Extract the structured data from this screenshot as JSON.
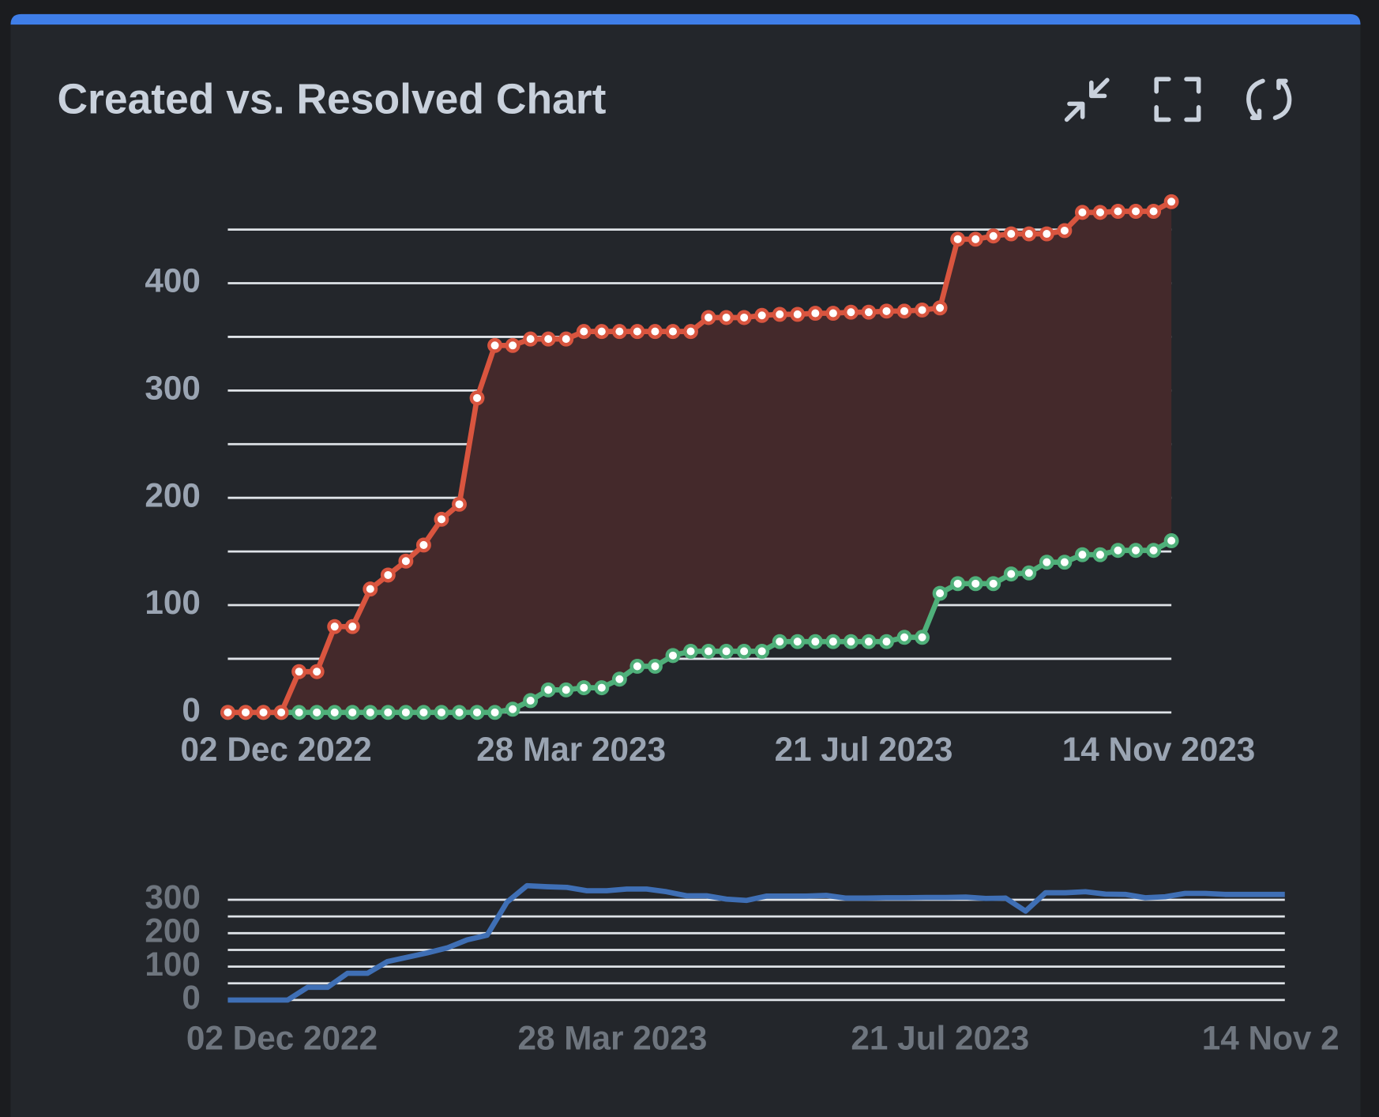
{
  "chart_data": [
    {
      "type": "line",
      "title": "Created vs. Resolved Chart",
      "x": [
        "2022-11-13",
        "2022-11-20",
        "2022-11-27",
        "2022-12-04",
        "2022-12-11",
        "2022-12-18",
        "2022-12-25",
        "2023-01-01",
        "2023-01-08",
        "2023-01-15",
        "2023-01-22",
        "2023-01-29",
        "2023-02-05",
        "2023-02-12",
        "2023-02-19",
        "2023-02-26",
        "2023-03-05",
        "2023-03-12",
        "2023-03-19",
        "2023-03-26",
        "2023-04-02",
        "2023-04-09",
        "2023-04-16",
        "2023-04-23",
        "2023-04-30",
        "2023-05-07",
        "2023-05-14",
        "2023-05-21",
        "2023-05-28",
        "2023-06-04",
        "2023-06-11",
        "2023-06-18",
        "2023-06-25",
        "2023-07-02",
        "2023-07-09",
        "2023-07-16",
        "2023-07-23",
        "2023-07-30",
        "2023-08-06",
        "2023-08-13",
        "2023-08-20",
        "2023-08-27",
        "2023-09-03",
        "2023-09-10",
        "2023-09-17",
        "2023-09-24",
        "2023-10-01",
        "2023-10-08",
        "2023-10-15",
        "2023-10-22",
        "2023-10-29",
        "2023-11-05",
        "2023-11-12",
        "2023-11-19"
      ],
      "xlim": [
        "2022-11-13",
        "2023-11-19"
      ],
      "xticks": [
        {
          "value": "2022-12-02",
          "label": "02 Dec 2022"
        },
        {
          "value": "2023-03-28",
          "label": "28 Mar 2023"
        },
        {
          "value": "2023-07-21",
          "label": "21 Jul 2023"
        },
        {
          "value": "2023-11-14",
          "label": "14 Nov 2023"
        }
      ],
      "ylim": [
        0,
        480
      ],
      "yticks": [
        0,
        100,
        200,
        300,
        400
      ],
      "minor_yticks": [
        50,
        150,
        250,
        350,
        450
      ],
      "grid": true,
      "fill_between": "#44292b",
      "series": [
        {
          "color": "#d9553f",
          "values": [
            0,
            0,
            0,
            0,
            38,
            38,
            80,
            80,
            115,
            128,
            141,
            156,
            180,
            194,
            293,
            342,
            342,
            348,
            348,
            348,
            355,
            355,
            355,
            355,
            355,
            355,
            355,
            368,
            368,
            368,
            370,
            371,
            371,
            372,
            372,
            373,
            373,
            374,
            374,
            375,
            377,
            441,
            441,
            444,
            446,
            446,
            446,
            449,
            466,
            466,
            467,
            467,
            467,
            476
          ]
        },
        {
          "color": "#4fb07a",
          "values": [
            0,
            0,
            0,
            0,
            0,
            0,
            0,
            0,
            0,
            0,
            0,
            0,
            0,
            0,
            0,
            0,
            3,
            11,
            21,
            21,
            23,
            23,
            31,
            43,
            43,
            53,
            57,
            57,
            57,
            57,
            57,
            66,
            66,
            66,
            66,
            66,
            66,
            66,
            70,
            70,
            111,
            120,
            120,
            120,
            129,
            130,
            140,
            140,
            147,
            147,
            151,
            151,
            151,
            160
          ]
        }
      ]
    },
    {
      "type": "line",
      "x": [
        "2022-11-13",
        "2022-11-20",
        "2022-11-27",
        "2022-12-04",
        "2022-12-11",
        "2022-12-18",
        "2022-12-25",
        "2023-01-01",
        "2023-01-08",
        "2023-01-15",
        "2023-01-22",
        "2023-01-29",
        "2023-02-05",
        "2023-02-12",
        "2023-02-19",
        "2023-02-26",
        "2023-03-05",
        "2023-03-12",
        "2023-03-19",
        "2023-03-26",
        "2023-04-02",
        "2023-04-09",
        "2023-04-16",
        "2023-04-23",
        "2023-04-30",
        "2023-05-07",
        "2023-05-14",
        "2023-05-21",
        "2023-05-28",
        "2023-06-04",
        "2023-06-11",
        "2023-06-18",
        "2023-06-25",
        "2023-07-02",
        "2023-07-09",
        "2023-07-16",
        "2023-07-23",
        "2023-07-30",
        "2023-08-06",
        "2023-08-13",
        "2023-08-20",
        "2023-08-27",
        "2023-09-03",
        "2023-09-10",
        "2023-09-17",
        "2023-09-24",
        "2023-10-01",
        "2023-10-08",
        "2023-10-15",
        "2023-10-22",
        "2023-10-29",
        "2023-11-05",
        "2023-11-12",
        "2023-11-19"
      ],
      "xlim": [
        "2022-11-13",
        "2023-11-19"
      ],
      "xticks": [
        {
          "value": "2022-12-02",
          "label": "02 Dec 2022"
        },
        {
          "value": "2023-03-28",
          "label": "28 Mar 2023"
        },
        {
          "value": "2023-07-21",
          "label": "21 Jul 2023"
        },
        {
          "value": "2023-11-14",
          "label": "14 Nov 2"
        }
      ],
      "ylim": [
        0,
        350
      ],
      "yticks": [
        0,
        100,
        200,
        300
      ],
      "minor_yticks": [
        50,
        150,
        250
      ],
      "grid": true,
      "series": [
        {
          "color": "#3f6fb5",
          "values": [
            0,
            0,
            0,
            0,
            38,
            38,
            80,
            80,
            115,
            128,
            141,
            156,
            180,
            194,
            293,
            342,
            339,
            337,
            327,
            327,
            332,
            332,
            324,
            312,
            312,
            302,
            298,
            311,
            311,
            311,
            313,
            305,
            305,
            306,
            306,
            307,
            307,
            308,
            304,
            305,
            266,
            321,
            321,
            324,
            317,
            316,
            306,
            309,
            319,
            319,
            316,
            316,
            316,
            316
          ]
        }
      ]
    }
  ]
}
